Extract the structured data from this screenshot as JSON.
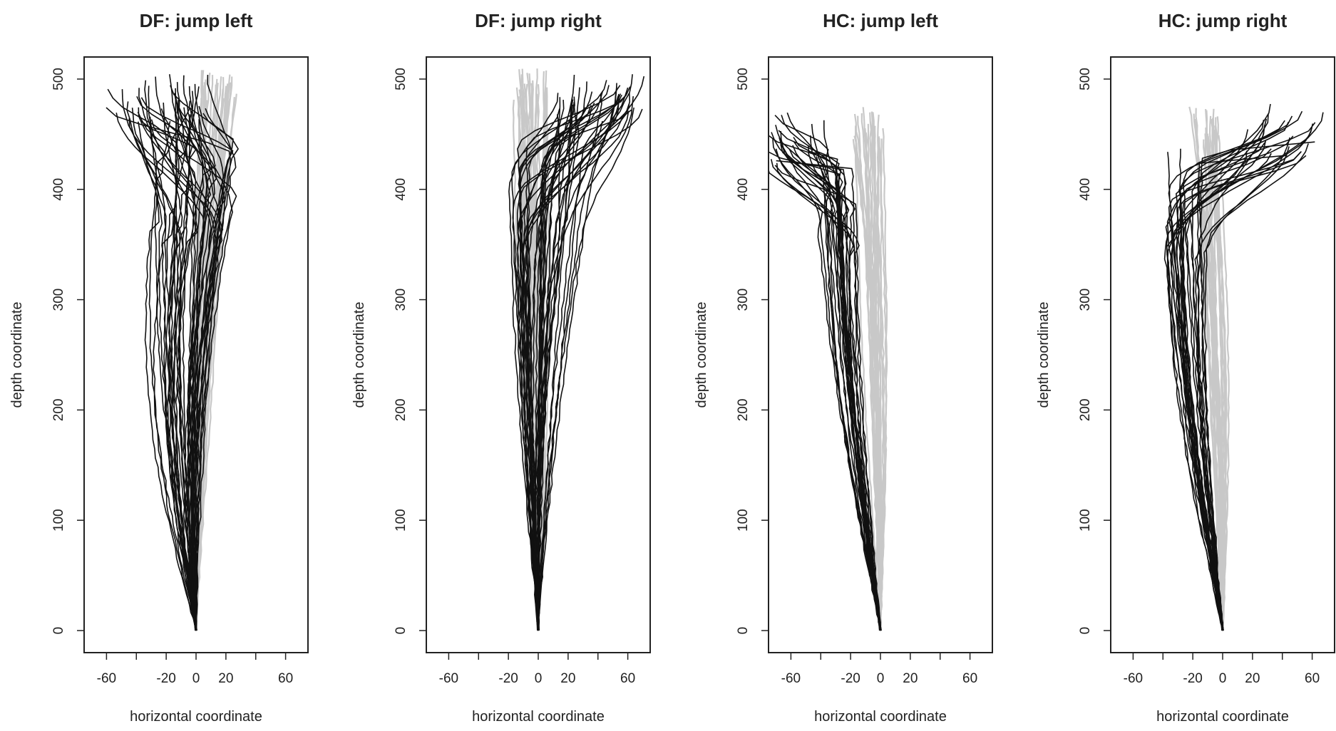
{
  "chart_data": [
    {
      "type": "line",
      "title": "DF: jump left",
      "xlabel": "horizontal coordinate",
      "ylabel": "depth coordinate",
      "xlim": [
        -75,
        75
      ],
      "ylim": [
        -20,
        520
      ],
      "x_ticks": [
        -60,
        -20,
        0,
        20,
        60
      ],
      "x_tick_marks": [
        -60,
        -40,
        -20,
        0,
        20,
        40,
        60
      ],
      "y_ticks": [
        0,
        100,
        200,
        300,
        400,
        500
      ],
      "colors": {
        "jump": "#111111",
        "baseline": "#c8c8c8"
      },
      "jump": {
        "lateral_start": [
          -55,
          -48,
          -40,
          -30,
          -20,
          -10
        ],
        "lateral_peak": [
          -22,
          -15,
          -8,
          -2,
          5,
          12,
          20,
          26
        ],
        "end_x": [
          -60,
          -52,
          -46,
          -40,
          -35,
          -30,
          -25,
          -20,
          -15,
          -10,
          -5,
          0,
          5
        ],
        "end_y": [
          505,
          500
        ],
        "count": 45
      },
      "baseline": {
        "start_x": 15,
        "start_y": 510,
        "spread": 12,
        "count": 30
      }
    },
    {
      "type": "line",
      "title": "DF: jump right",
      "xlabel": "horizontal coordinate",
      "ylabel": "depth coordinate",
      "xlim": [
        -75,
        75
      ],
      "ylim": [
        -20,
        520
      ],
      "x_ticks": [
        -60,
        -20,
        0,
        20,
        60
      ],
      "x_tick_marks": [
        -60,
        -40,
        -20,
        0,
        20,
        40,
        60
      ],
      "y_ticks": [
        0,
        100,
        200,
        300,
        400,
        500
      ],
      "colors": {
        "jump": "#111111",
        "baseline": "#c8c8c8"
      },
      "jump": {
        "lateral_start": [
          -20,
          -15,
          -10,
          -5,
          0
        ],
        "lateral_peak": [
          -15,
          -8,
          -2,
          5,
          12,
          20,
          30
        ],
        "end_x": [
          15,
          25,
          35,
          45,
          55,
          62,
          68
        ],
        "end_y": [
          505,
          498
        ],
        "count": 45
      },
      "baseline": {
        "start_x": -5,
        "start_y": 510,
        "spread": 12,
        "count": 30
      }
    },
    {
      "type": "line",
      "title": "HC: jump left",
      "xlabel": "horizontal coordinate",
      "ylabel": "depth coordinate",
      "xlim": [
        -75,
        75
      ],
      "ylim": [
        -20,
        520
      ],
      "x_ticks": [
        -60,
        -20,
        0,
        20,
        60
      ],
      "x_tick_marks": [
        -60,
        -40,
        -20,
        0,
        20,
        40,
        60
      ],
      "y_ticks": [
        0,
        100,
        200,
        300,
        400,
        500
      ],
      "colors": {
        "jump": "#111111",
        "baseline": "#c8c8c8"
      },
      "jump": {
        "lateral_start": [
          -35,
          -30,
          -25,
          -20
        ],
        "lateral_peak": [
          -38,
          -32,
          -28,
          -24,
          -20,
          -16
        ],
        "end_x": [
          -75,
          -70,
          -65,
          -60,
          -55,
          -48,
          -40
        ],
        "end_y": [
          470,
          460
        ],
        "count": 30
      },
      "baseline": {
        "start_x": -8,
        "start_y": 475,
        "spread": 10,
        "count": 25
      }
    },
    {
      "type": "line",
      "title": "HC: jump right",
      "xlabel": "horizontal coordinate",
      "ylabel": "depth coordinate",
      "xlim": [
        -75,
        75
      ],
      "ylim": [
        -20,
        520
      ],
      "x_ticks": [
        -60,
        -20,
        0,
        20,
        60
      ],
      "x_tick_marks": [
        -60,
        -40,
        -20,
        0,
        20,
        40,
        60
      ],
      "y_ticks": [
        0,
        100,
        200,
        300,
        400,
        500
      ],
      "colors": {
        "jump": "#111111",
        "baseline": "#c8c8c8"
      },
      "jump": {
        "lateral_start": [
          -35,
          -30,
          -25,
          -20
        ],
        "lateral_peak": [
          -35,
          -28,
          -22,
          -16,
          -10
        ],
        "end_x": [
          15,
          30,
          45,
          55,
          62,
          68
        ],
        "end_y": [
          480,
          470
        ],
        "count": 30
      },
      "baseline": {
        "start_x": -12,
        "start_y": 475,
        "spread": 10,
        "count": 25
      }
    }
  ]
}
